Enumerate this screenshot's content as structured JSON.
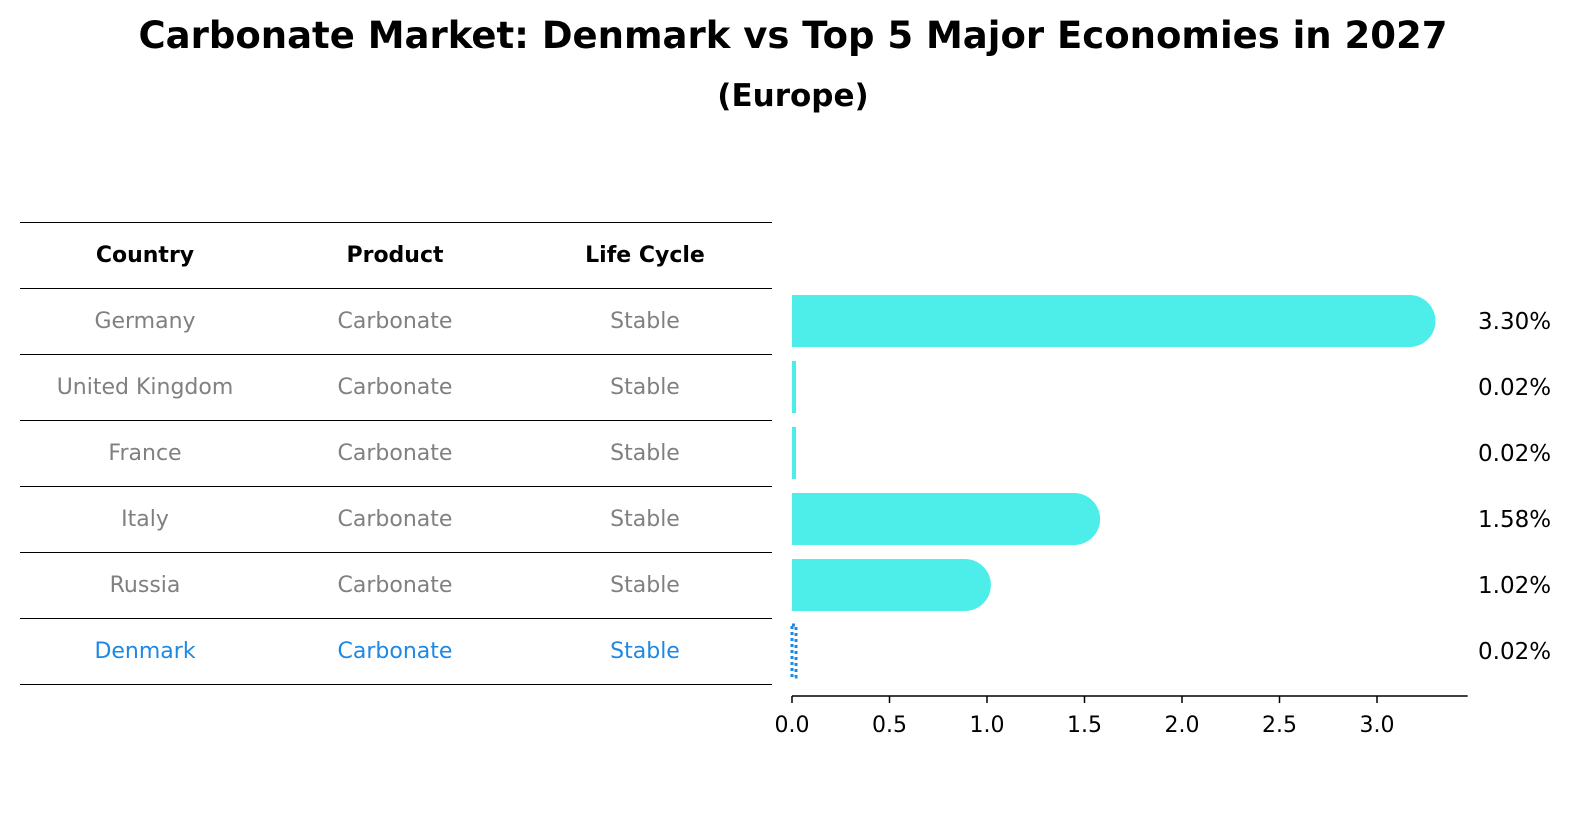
{
  "title": "Carbonate Market: Denmark vs Top 5 Major Economies in 2027",
  "subtitle": "(Europe)",
  "table": {
    "headers": [
      "Country",
      "Product",
      "Life Cycle"
    ],
    "rows": [
      [
        "Germany",
        "Carbonate",
        "Stable"
      ],
      [
        "United Kingdom",
        "Carbonate",
        "Stable"
      ],
      [
        "France",
        "Carbonate",
        "Stable"
      ],
      [
        "Italy",
        "Carbonate",
        "Stable"
      ],
      [
        "Russia",
        "Carbonate",
        "Stable"
      ],
      [
        "Denmark",
        "Carbonate",
        "Stable"
      ]
    ]
  },
  "colors": {
    "bar": "#4deee9",
    "highlight": "#1e88e5",
    "row_text": "#808080"
  },
  "chart_data": {
    "type": "bar",
    "orientation": "horizontal",
    "categories": [
      "Germany",
      "United Kingdom",
      "France",
      "Italy",
      "Russia",
      "Denmark"
    ],
    "values": [
      3.3,
      0.02,
      0.02,
      1.58,
      1.02,
      0.02
    ],
    "value_labels": [
      "3.30%",
      "0.02%",
      "0.02%",
      "1.58%",
      "1.02%",
      "0.02%"
    ],
    "highlight": "Denmark",
    "xlim": [
      0,
      3.465
    ],
    "xticks": [
      0.0,
      0.5,
      1.0,
      1.5,
      2.0,
      2.5,
      3.0
    ],
    "xtick_labels": [
      "0.0",
      "0.5",
      "1.0",
      "1.5",
      "2.0",
      "2.5",
      "3.0"
    ],
    "grid": false
  }
}
